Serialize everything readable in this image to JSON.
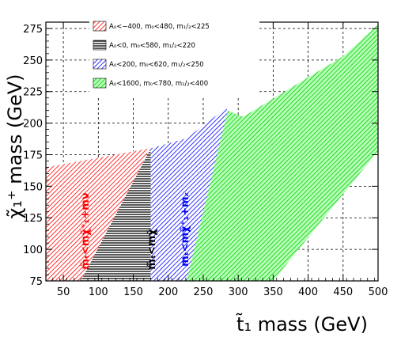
{
  "chart_data": {
    "type": "area",
    "xlabel": "t̃₁ mass (GeV)",
    "ylabel": "χ̃₁⁺ mass (GeV)",
    "xlim": [
      25,
      500
    ],
    "ylim": [
      75,
      280
    ],
    "x_ticks": [
      50,
      100,
      150,
      200,
      250,
      300,
      350,
      400,
      450,
      500
    ],
    "y_ticks": [
      75,
      100,
      125,
      150,
      175,
      200,
      225,
      250,
      275
    ],
    "grid": true,
    "legend_position": "top-left",
    "series": [
      {
        "name": "A₀<−400, m₀<480, m₁/₂<225",
        "color": "#ff0000",
        "pattern": "hatch",
        "points": [
          [
            25,
            75
          ],
          [
            88,
            75
          ],
          [
            173,
            180
          ],
          [
            25,
            165
          ]
        ],
        "label": "m̃ₜ<mχ̃⁺₁+mν"
      },
      {
        "name": "A₀<0, m₀<580, m₁/₂<220",
        "color": "#000000",
        "pattern": "horizontal",
        "points": [
          [
            75,
            75
          ],
          [
            175,
            75
          ],
          [
            175,
            180
          ]
        ],
        "label": "m̃ₜ<mχ̃"
      },
      {
        "name": "A₀<200, m₀<620, m₁/₂<250",
        "color": "#0000ff",
        "pattern": "hatch",
        "points": [
          [
            175,
            75
          ],
          [
            228,
            75
          ],
          [
            285,
            210
          ],
          [
            283,
            212
          ],
          [
            226,
            188
          ],
          [
            175,
            180
          ]
        ],
        "label": "mₜ<mχ̃⁺₁+mₓ"
      },
      {
        "name": "A₀<1600, m₀<780, m₁/₂<400",
        "color": "#00cc00",
        "pattern": "hatch",
        "points": [
          [
            226,
            75
          ],
          [
            350,
            75
          ],
          [
            500,
            178
          ],
          [
            500,
            278
          ],
          [
            450,
            253
          ],
          [
            307,
            205
          ],
          [
            285,
            210
          ]
        ],
        "label": ""
      }
    ]
  }
}
